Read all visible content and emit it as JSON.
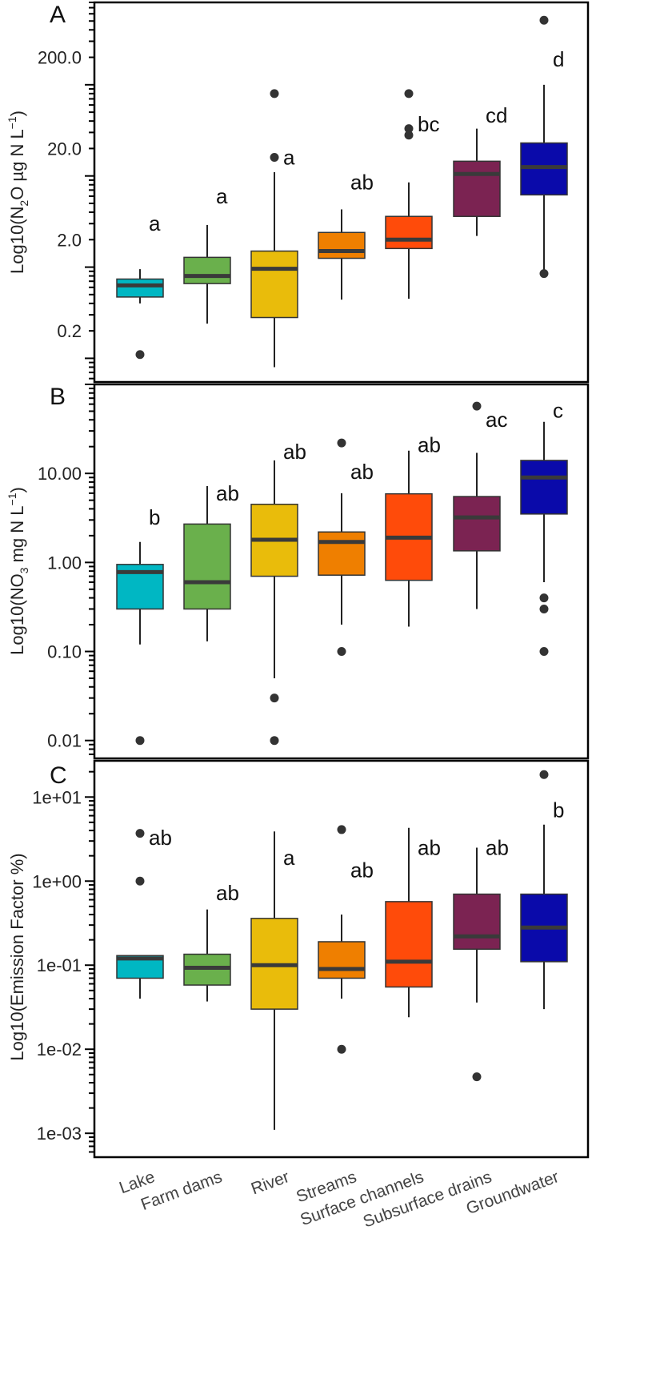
{
  "categories": [
    "Lake",
    "Farm dams",
    "River",
    "Streams",
    "Surface channels",
    "Subsurface drains",
    "Groundwater"
  ],
  "colors": [
    "#00b7c3",
    "#6ab04c",
    "#e9bc0b",
    "#ef7f00",
    "#ff4b0a",
    "#7b2352",
    "#0a0aaa"
  ],
  "chart_data": [
    {
      "type": "box",
      "panel": "A",
      "title": "A",
      "ylabel": {
        "main": "Log10(N",
        "sub": "2",
        "mid": "O µg N L",
        "sup": "−1",
        "end": ")"
      },
      "scale": "log10",
      "ylim": [
        0.055,
        800
      ],
      "yticks": [
        0.2,
        2,
        20,
        200
      ],
      "ytick_labels": [
        "0.2",
        "2.0",
        "20.0",
        "200.0"
      ],
      "series": [
        {
          "name": "Lake",
          "whisker_low": 0.4,
          "q1": 0.47,
          "median": 0.63,
          "q3": 0.74,
          "whisker_high": 0.95,
          "outliers": [
            0.11
          ],
          "letter": "a",
          "letter_y": 3.0
        },
        {
          "name": "Farm dams",
          "whisker_low": 0.24,
          "q1": 0.66,
          "median": 0.8,
          "q3": 1.28,
          "whisker_high": 2.9,
          "outliers": [],
          "letter": "a",
          "letter_y": 6.0
        },
        {
          "name": "River",
          "whisker_low": 0.08,
          "q1": 0.28,
          "median": 0.96,
          "q3": 1.5,
          "whisker_high": 11,
          "outliers": [
            80,
            16
          ],
          "letter": "a",
          "letter_y": 16
        },
        {
          "name": "Streams",
          "whisker_low": 0.44,
          "q1": 1.25,
          "median": 1.5,
          "q3": 2.4,
          "whisker_high": 4.3,
          "outliers": [],
          "letter": "ab",
          "letter_y": 8.5
        },
        {
          "name": "Surface channels",
          "whisker_low": 0.45,
          "q1": 1.6,
          "median": 2.0,
          "q3": 3.6,
          "whisker_high": 8.5,
          "outliers": [
            80,
            33,
            28
          ],
          "letter": "bc",
          "letter_y": 37
        },
        {
          "name": "Subsurface drains",
          "whisker_low": 2.2,
          "q1": 3.6,
          "median": 10.5,
          "q3": 14.5,
          "whisker_high": 33,
          "outliers": [],
          "letter": "cd",
          "letter_y": 46
        },
        {
          "name": "Groundwater",
          "whisker_low": 0.85,
          "q1": 6.2,
          "median": 12.5,
          "q3": 23,
          "whisker_high": 100,
          "outliers": [
            510,
            0.85
          ],
          "letter": "d",
          "letter_y": 190
        }
      ]
    },
    {
      "type": "box",
      "panel": "B",
      "title": "B",
      "ylabel": {
        "main": "Log10(NO",
        "sub": "3",
        "mid": " mg N L",
        "sup": "−1",
        "end": ")"
      },
      "scale": "log10",
      "ylim": [
        0.0063,
        100
      ],
      "yticks": [
        0.01,
        0.1,
        1,
        10
      ],
      "ytick_labels": [
        "0.01",
        "0.10",
        "1.00",
        "10.00"
      ],
      "series": [
        {
          "name": "Lake",
          "whisker_low": 0.12,
          "q1": 0.3,
          "median": 0.78,
          "q3": 0.95,
          "whisker_high": 1.7,
          "outliers": [
            0.01
          ],
          "letter": "b",
          "letter_y": 3.2
        },
        {
          "name": "Farm dams",
          "whisker_low": 0.13,
          "q1": 0.3,
          "median": 0.6,
          "q3": 2.7,
          "whisker_high": 7.2,
          "outliers": [],
          "letter": "ab",
          "letter_y": 6.0
        },
        {
          "name": "River",
          "whisker_low": 0.05,
          "q1": 0.7,
          "median": 1.8,
          "q3": 4.5,
          "whisker_high": 14,
          "outliers": [
            0.03,
            0.01
          ],
          "letter": "ab",
          "letter_y": 17.5
        },
        {
          "name": "Streams",
          "whisker_low": 0.2,
          "q1": 0.72,
          "median": 1.7,
          "q3": 2.2,
          "whisker_high": 6.0,
          "outliers": [
            22,
            0.1
          ],
          "letter": "ab",
          "letter_y": 10.5
        },
        {
          "name": "Surface channels",
          "whisker_low": 0.19,
          "q1": 0.63,
          "median": 1.9,
          "q3": 5.9,
          "whisker_high": 18,
          "outliers": [],
          "letter": "ab",
          "letter_y": 21
        },
        {
          "name": "Subsurface drains",
          "whisker_low": 0.3,
          "q1": 1.35,
          "median": 3.2,
          "q3": 5.5,
          "whisker_high": 17,
          "outliers": [
            57
          ],
          "letter": "ac",
          "letter_y": 40
        },
        {
          "name": "Groundwater",
          "whisker_low": 0.6,
          "q1": 3.5,
          "median": 9.0,
          "q3": 14,
          "whisker_high": 38,
          "outliers": [
            0.4,
            0.3,
            0.1
          ],
          "letter": "c",
          "letter_y": 51
        }
      ]
    },
    {
      "type": "box",
      "panel": "C",
      "title": "C",
      "ylabel": {
        "main": "Log10(Emission Factor %)",
        "sub": "",
        "mid": "",
        "sup": "",
        "end": ""
      },
      "scale": "log10",
      "ylim": [
        0.00052,
        27
      ],
      "yticks": [
        0.001,
        0.01,
        0.1,
        1,
        10
      ],
      "ytick_labels": [
        "1e-03",
        "1e-02",
        "1e-01",
        "1e+00",
        "1e+01"
      ],
      "series": [
        {
          "name": "Lake",
          "whisker_low": 0.04,
          "q1": 0.07,
          "median": 0.12,
          "q3": 0.13,
          "whisker_high": 0.13,
          "outliers": [
            3.7,
            1.0
          ],
          "letter": "ab",
          "letter_y": 3.3
        },
        {
          "name": "Farm dams",
          "whisker_low": 0.037,
          "q1": 0.058,
          "median": 0.093,
          "q3": 0.135,
          "whisker_high": 0.46,
          "outliers": [],
          "letter": "ab",
          "letter_y": 0.72
        },
        {
          "name": "River",
          "whisker_low": 0.0011,
          "q1": 0.03,
          "median": 0.1,
          "q3": 0.36,
          "whisker_high": 3.9,
          "outliers": [],
          "letter": "a",
          "letter_y": 1.9
        },
        {
          "name": "Streams",
          "whisker_low": 0.04,
          "q1": 0.07,
          "median": 0.09,
          "q3": 0.19,
          "whisker_high": 0.4,
          "outliers": [
            4.1,
            0.01
          ],
          "letter": "ab",
          "letter_y": 1.35
        },
        {
          "name": "Surface channels",
          "whisker_low": 0.024,
          "q1": 0.055,
          "median": 0.11,
          "q3": 0.57,
          "whisker_high": 4.3,
          "outliers": [],
          "letter": "ab",
          "letter_y": 2.5
        },
        {
          "name": "Subsurface drains",
          "whisker_low": 0.036,
          "q1": 0.155,
          "median": 0.22,
          "q3": 0.7,
          "whisker_high": 2.5,
          "outliers": [
            0.0047
          ],
          "letter": "ab",
          "letter_y": 2.5
        },
        {
          "name": "Groundwater",
          "whisker_low": 0.03,
          "q1": 0.11,
          "median": 0.28,
          "q3": 0.7,
          "whisker_high": 4.7,
          "outliers": [
            18.5
          ],
          "letter": "b",
          "letter_y": 7.0
        }
      ]
    }
  ]
}
